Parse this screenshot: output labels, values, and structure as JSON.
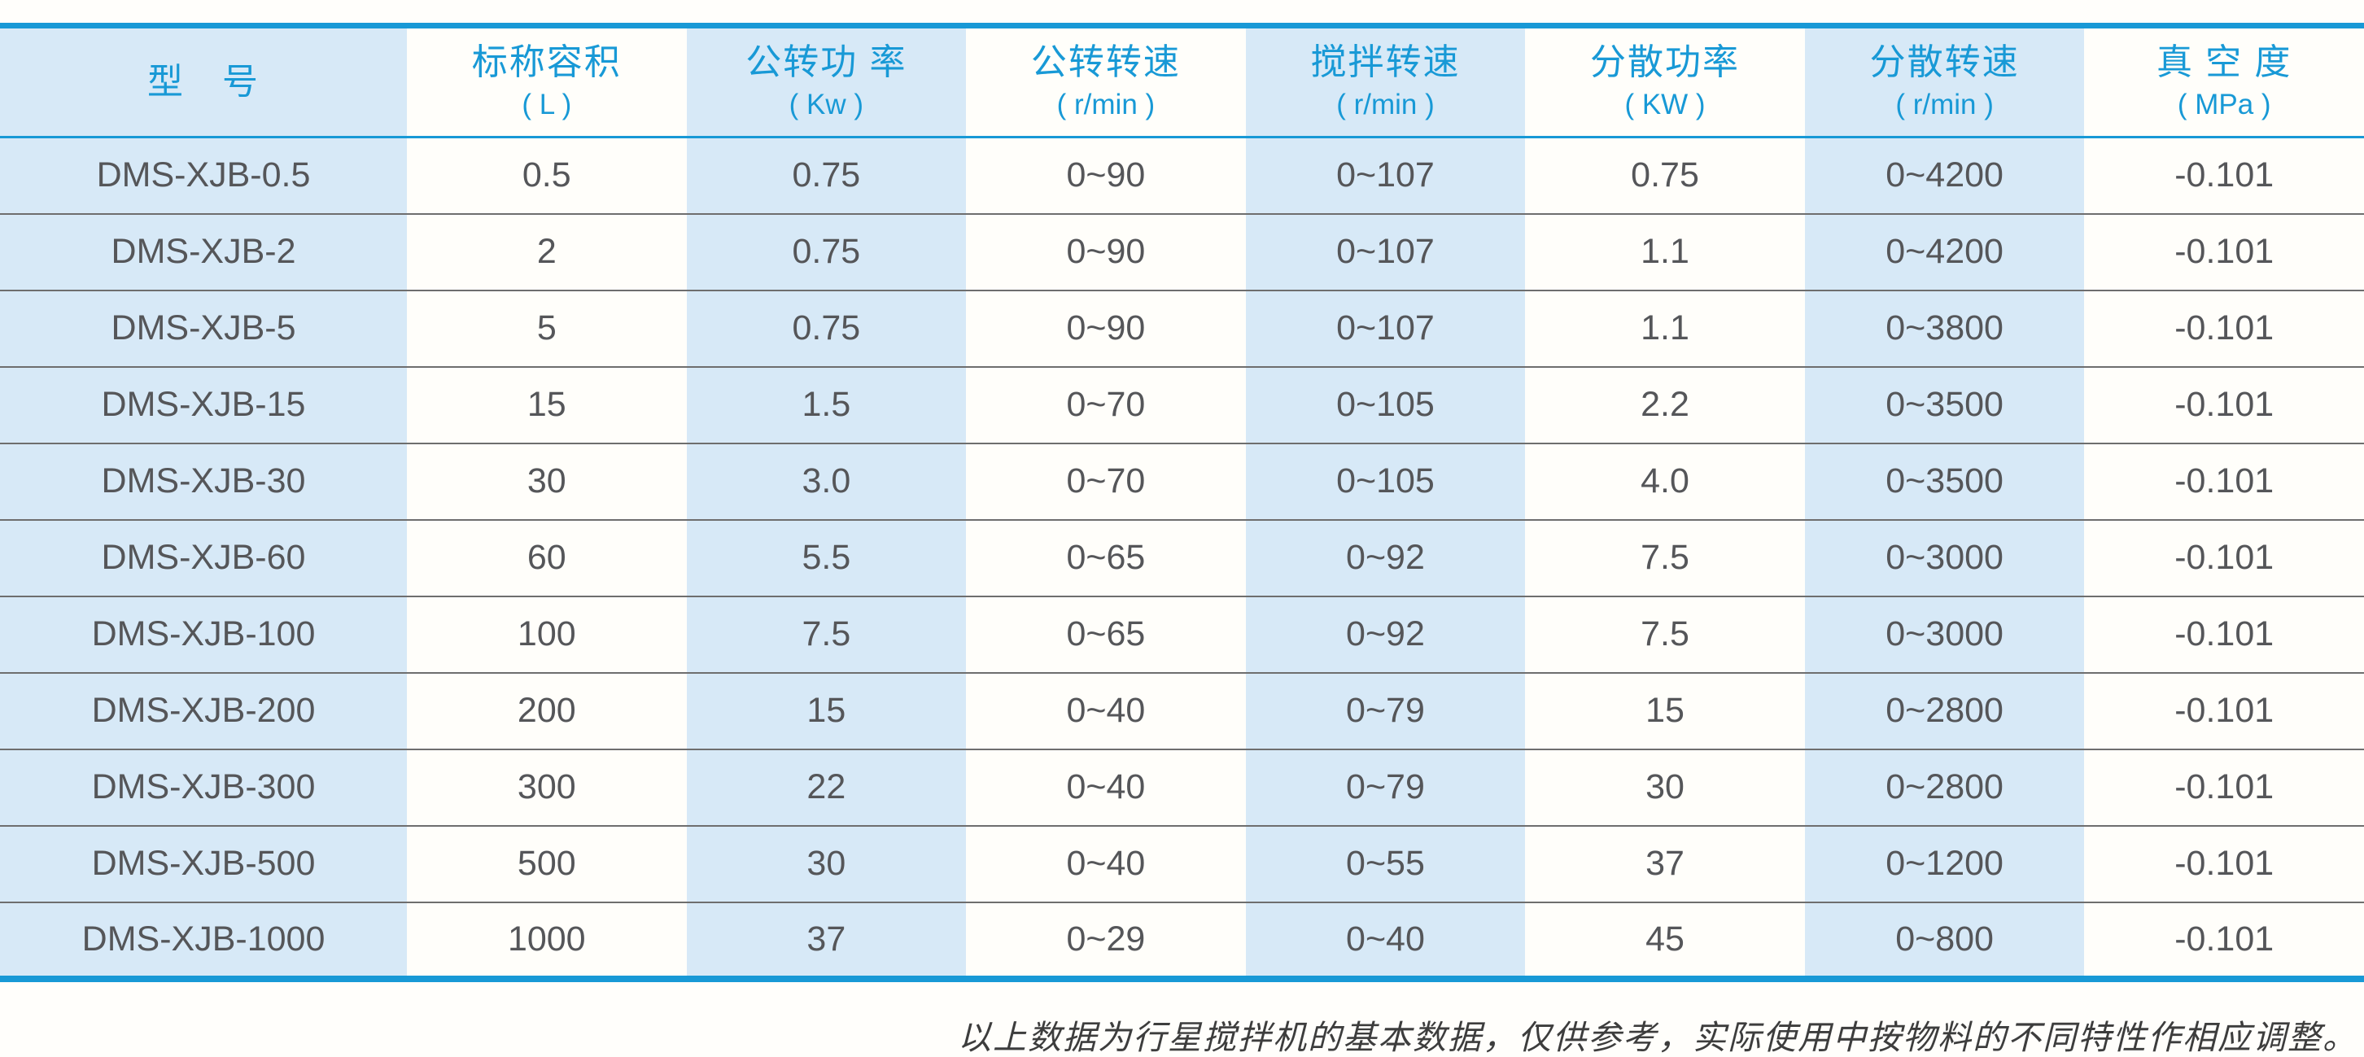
{
  "colors": {
    "accent_blue": "#1899d6",
    "cell_light_blue": "#d7e9f7",
    "cell_white": "#fffefa",
    "data_text": "#555659",
    "separator_gray": "#6e6e6e"
  },
  "table": {
    "columns": [
      {
        "title": "型　号",
        "unit": ""
      },
      {
        "title": "标称容积",
        "unit": "( L )"
      },
      {
        "title": "公转功 率",
        "unit": "( Kw )"
      },
      {
        "title": "公转转速",
        "unit": "( r/min )"
      },
      {
        "title": "搅拌转速",
        "unit": "( r/min )"
      },
      {
        "title": "分散功率",
        "unit": "( KW )"
      },
      {
        "title": "分散转速",
        "unit": "( r/min )"
      },
      {
        "title": "真 空 度",
        "unit": "( MPa )"
      }
    ],
    "rows": [
      [
        "DMS-XJB-0.5",
        "0.5",
        "0.75",
        "0~90",
        "0~107",
        "0.75",
        "0~4200",
        "-0.101"
      ],
      [
        "DMS-XJB-2",
        "2",
        "0.75",
        "0~90",
        "0~107",
        "1.1",
        "0~4200",
        "-0.101"
      ],
      [
        "DMS-XJB-5",
        "5",
        "0.75",
        "0~90",
        "0~107",
        "1.1",
        "0~3800",
        "-0.101"
      ],
      [
        "DMS-XJB-15",
        "15",
        "1.5",
        "0~70",
        "0~105",
        "2.2",
        "0~3500",
        "-0.101"
      ],
      [
        "DMS-XJB-30",
        "30",
        "3.0",
        "0~70",
        "0~105",
        "4.0",
        "0~3500",
        "-0.101"
      ],
      [
        "DMS-XJB-60",
        "60",
        "5.5",
        "0~65",
        "0~92",
        "7.5",
        "0~3000",
        "-0.101"
      ],
      [
        "DMS-XJB-100",
        "100",
        "7.5",
        "0~65",
        "0~92",
        "7.5",
        "0~3000",
        "-0.101"
      ],
      [
        "DMS-XJB-200",
        "200",
        "15",
        "0~40",
        "0~79",
        "15",
        "0~2800",
        "-0.101"
      ],
      [
        "DMS-XJB-300",
        "300",
        "22",
        "0~40",
        "0~79",
        "30",
        "0~2800",
        "-0.101"
      ],
      [
        "DMS-XJB-500",
        "500",
        "30",
        "0~40",
        "0~55",
        "37",
        "0~1200",
        "-0.101"
      ],
      [
        "DMS-XJB-1000",
        "1000",
        "37",
        "0~29",
        "0~40",
        "45",
        "0~800",
        "-0.101"
      ]
    ]
  },
  "footnote": "以上数据为行星搅拌机的基本数据，仅供参考，实际使用中按物料的不同特性作相应调整。"
}
